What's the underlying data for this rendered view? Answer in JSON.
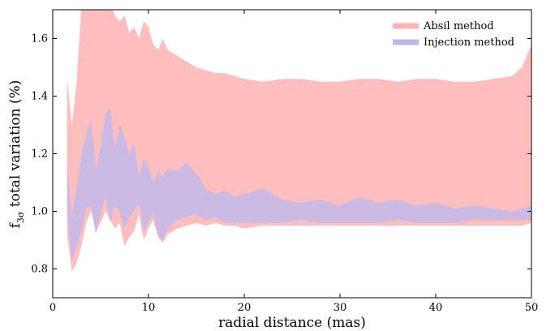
{
  "chart_data": {
    "type": "area",
    "xlabel": "radial distance (mas)",
    "ylabel_main": "f",
    "ylabel_sub": "3σ",
    "ylabel_rest": " total variation (%)",
    "xlim": [
      0,
      50
    ],
    "ylim": [
      0.7,
      1.7
    ],
    "x_ticks": [
      0,
      10,
      20,
      30,
      40,
      50
    ],
    "y_ticks": [
      0.8,
      1.0,
      1.2,
      1.4,
      1.6
    ],
    "x_tick_labels": [
      "0",
      "10",
      "20",
      "30",
      "40",
      "50"
    ],
    "y_tick_labels": [
      "0.8",
      "1.0",
      "1.2",
      "1.4",
      "1.6"
    ],
    "grid": false,
    "legend_position": "top-right",
    "series": [
      {
        "name": "Absil method",
        "color": "#ffb3b3",
        "x": [
          1.5,
          2,
          2.5,
          3,
          3.5,
          4,
          4.5,
          5,
          5.5,
          6,
          6.5,
          7,
          7.5,
          8,
          8.5,
          9,
          9.5,
          10,
          10.5,
          11,
          11.5,
          12,
          13,
          14,
          15,
          16,
          17,
          18,
          19,
          20,
          22,
          24,
          26,
          28,
          30,
          32,
          34,
          36,
          38,
          40,
          42,
          44,
          46,
          48,
          49,
          50
        ],
        "upper": [
          1.46,
          1.3,
          1.45,
          1.72,
          1.72,
          1.72,
          1.72,
          1.72,
          1.7,
          1.72,
          1.68,
          1.66,
          1.68,
          1.62,
          1.64,
          1.6,
          1.66,
          1.64,
          1.58,
          1.56,
          1.6,
          1.56,
          1.54,
          1.52,
          1.5,
          1.49,
          1.48,
          1.48,
          1.47,
          1.46,
          1.45,
          1.46,
          1.46,
          1.45,
          1.45,
          1.46,
          1.46,
          1.45,
          1.46,
          1.46,
          1.45,
          1.45,
          1.46,
          1.47,
          1.5,
          1.58
        ],
        "lower": [
          0.92,
          0.79,
          0.82,
          0.88,
          0.96,
          1.0,
          0.93,
          0.96,
          1.0,
          0.97,
          0.94,
          0.96,
          0.88,
          0.91,
          0.93,
          0.99,
          0.9,
          0.94,
          0.97,
          0.91,
          0.89,
          0.92,
          0.94,
          0.95,
          0.96,
          0.95,
          0.96,
          0.95,
          0.95,
          0.94,
          0.95,
          0.95,
          0.95,
          0.95,
          0.95,
          0.95,
          0.95,
          0.95,
          0.95,
          0.95,
          0.95,
          0.95,
          0.95,
          0.95,
          0.95,
          0.96
        ]
      },
      {
        "name": "Injection method",
        "color": "#b9b9f0",
        "x": [
          1.5,
          2,
          2.5,
          3,
          3.5,
          4,
          4.5,
          5,
          5.5,
          6,
          6.5,
          7,
          7.5,
          8,
          8.5,
          9,
          9.5,
          10,
          10.5,
          11,
          11.5,
          12,
          13,
          14,
          15,
          16,
          17,
          18,
          19,
          20,
          22,
          24,
          26,
          28,
          30,
          32,
          34,
          36,
          38,
          40,
          42,
          44,
          46,
          48,
          49,
          50
        ],
        "upper": [
          1.17,
          0.98,
          1.08,
          1.2,
          1.27,
          1.32,
          1.15,
          1.22,
          1.34,
          1.36,
          1.22,
          1.3,
          1.26,
          1.2,
          1.24,
          1.12,
          1.18,
          1.16,
          1.1,
          1.14,
          1.12,
          1.15,
          1.14,
          1.17,
          1.13,
          1.08,
          1.06,
          1.07,
          1.05,
          1.06,
          1.08,
          1.04,
          1.03,
          1.04,
          1.02,
          1.05,
          1.03,
          1.04,
          1.02,
          1.03,
          1.01,
          1.02,
          1.01,
          1.0,
          1.01,
          1.02
        ],
        "lower": [
          1.0,
          0.82,
          0.88,
          0.93,
          1.01,
          1.02,
          0.92,
          0.99,
          1.05,
          0.96,
          1.02,
          1.0,
          0.94,
          0.98,
          1.0,
          1.03,
          0.93,
          0.96,
          0.99,
          0.92,
          0.9,
          0.94,
          0.97,
          0.98,
          0.99,
          0.97,
          0.98,
          0.96,
          0.96,
          0.96,
          0.96,
          0.96,
          0.97,
          0.96,
          0.96,
          0.96,
          0.96,
          0.97,
          0.96,
          0.96,
          0.96,
          0.97,
          0.97,
          0.97,
          0.97,
          0.97
        ]
      }
    ]
  }
}
